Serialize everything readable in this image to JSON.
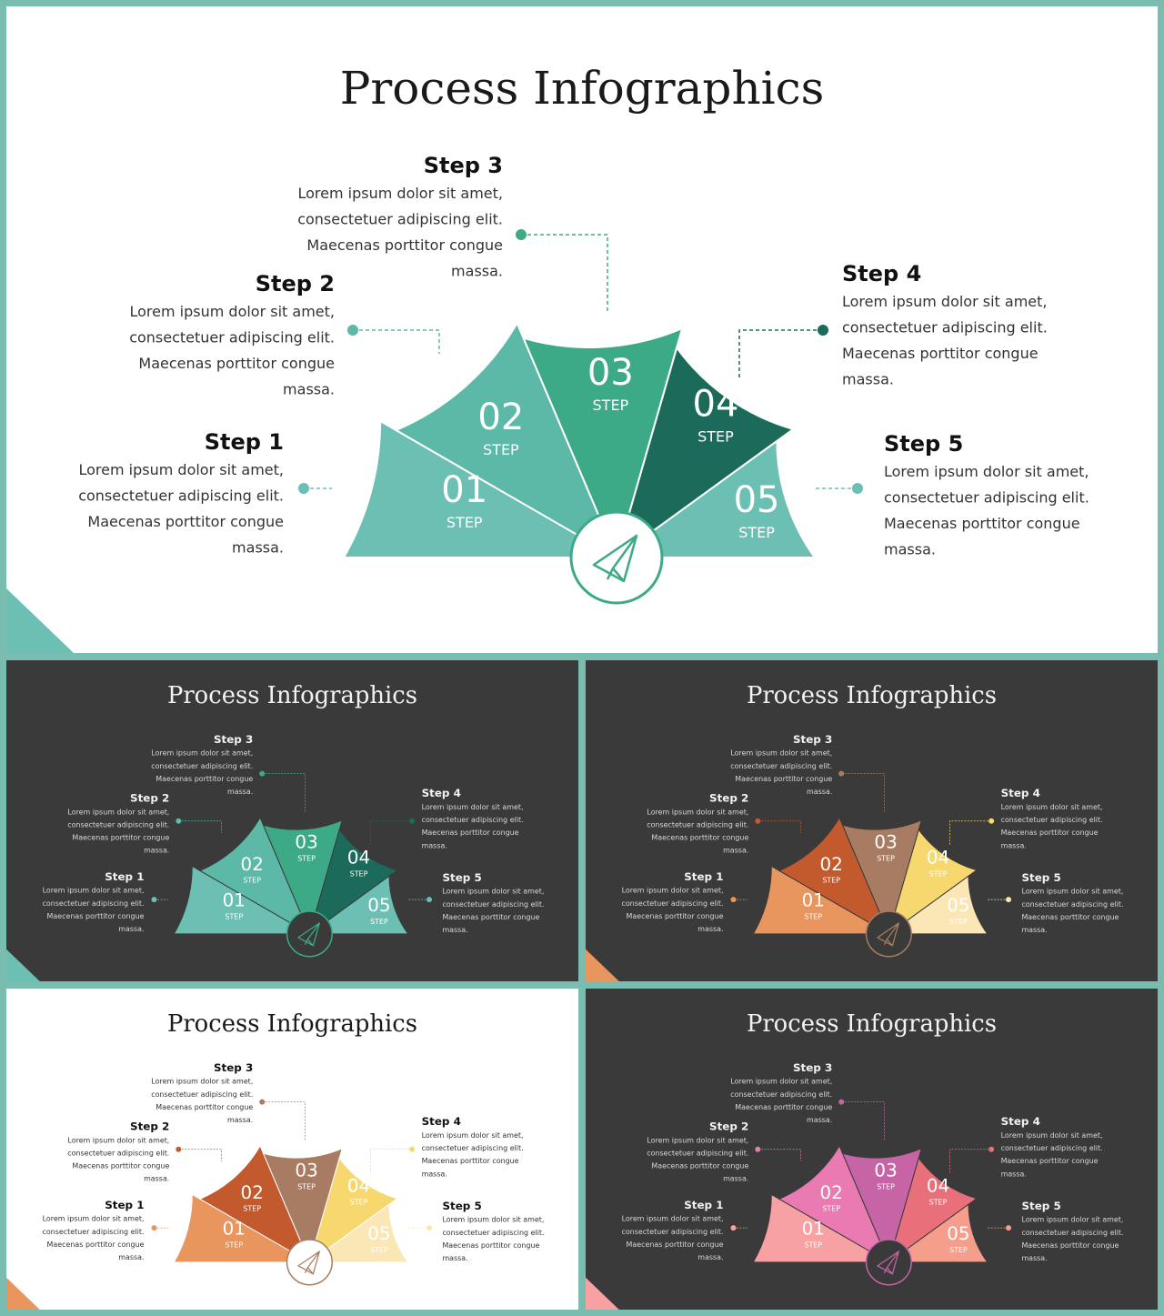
{
  "title": "Process Infographics",
  "step_prefix": "Step",
  "step_word": "STEP",
  "steps": [
    {
      "num": "01",
      "title": "Step 1",
      "lines": [
        "Lorem ipsum dolor sit amet,",
        "consectetuer adipiscing  elit.",
        "Maecenas porttitor congue",
        "massa."
      ]
    },
    {
      "num": "02",
      "title": "Step 2",
      "lines": [
        "Lorem ipsum dolor sit amet,",
        "consectetuer adipiscing  elit.",
        "Maecenas porttitor congue",
        "massa."
      ]
    },
    {
      "num": "03",
      "title": "Step 3",
      "lines": [
        "Lorem ipsum dolor sit amet,",
        "consectetuer adipiscing  elit.",
        "Maecenas porttitor congue",
        "massa."
      ]
    },
    {
      "num": "04",
      "title": "Step 4",
      "lines": [
        "Lorem ipsum dolor sit amet,",
        "consectetuer adipiscing  elit.",
        "Maecenas porttitor congue",
        "massa."
      ]
    },
    {
      "num": "05",
      "title": "Step 5",
      "lines": [
        "Lorem ipsum dolor sit amet,",
        "consectetuer adipiscing  elit.",
        "Maecenas porttitor congue",
        "massa."
      ]
    }
  ],
  "center_icon": "paper-plane-icon",
  "slides": [
    {
      "id": "main",
      "theme": "light",
      "colors": [
        "#6cbfb3",
        "#5cb8a7",
        "#3daa87",
        "#1c6b5a",
        "#6cbfb3"
      ],
      "accent": "#6cbfb3"
    },
    {
      "id": "a",
      "theme": "dark",
      "colors": [
        "#6cbfb3",
        "#5cb8a7",
        "#3daa87",
        "#1c6b5a",
        "#6cbfb3"
      ],
      "accent": "#6cbfb3"
    },
    {
      "id": "b",
      "theme": "dark",
      "colors": [
        "#e8955e",
        "#c25a2d",
        "#a87c62",
        "#f7d86e",
        "#fbe7b6"
      ],
      "accent": "#e8955e"
    },
    {
      "id": "c",
      "theme": "light",
      "colors": [
        "#e8955e",
        "#c25a2d",
        "#a87c62",
        "#f7d86e",
        "#fbe7b6"
      ],
      "accent": "#e8955e"
    },
    {
      "id": "d",
      "theme": "dark",
      "colors": [
        "#f7a1a3",
        "#ea7ab2",
        "#c664a6",
        "#e9707a",
        "#f59e8c"
      ],
      "accent": "#f7a1a3"
    }
  ]
}
